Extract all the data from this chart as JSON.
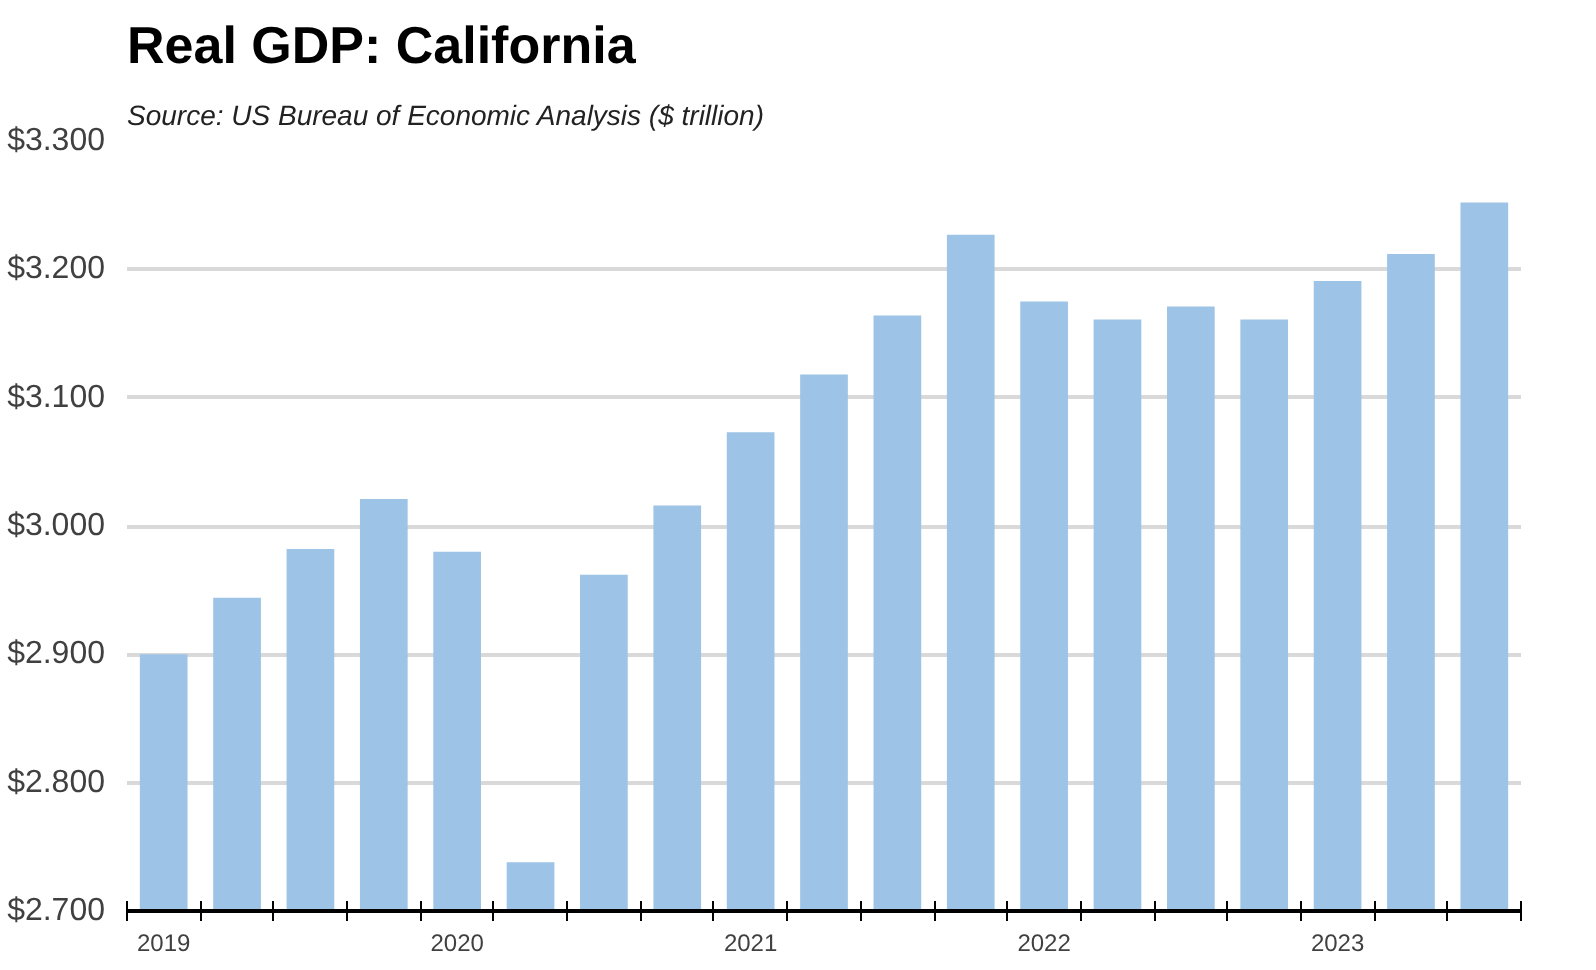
{
  "chart_data": {
    "type": "bar",
    "title": "Real GDP:  California",
    "subtitle": "Source:  US Bureau of Economic Analysis ($ trillion)",
    "categories": [
      "2019",
      null,
      null,
      null,
      "2020",
      null,
      null,
      null,
      "2021",
      null,
      null,
      null,
      "2022",
      null,
      null,
      null,
      "2023",
      null,
      null
    ],
    "values": [
      2.9,
      2.944,
      2.982,
      3.021,
      2.98,
      2.738,
      2.962,
      3.016,
      3.073,
      3.118,
      3.164,
      3.227,
      3.175,
      3.161,
      3.171,
      3.161,
      3.191,
      3.212,
      3.252
    ],
    "color": "#9dc3e6",
    "ylim": [
      2.7,
      3.3
    ],
    "yticks": [
      {
        "value": 2.7,
        "label": "$2.700"
      },
      {
        "value": 2.8,
        "label": "$2.800"
      },
      {
        "value": 2.9,
        "label": "$2.900"
      },
      {
        "value": 3.0,
        "label": "$3.000"
      },
      {
        "value": 3.1,
        "label": "$3.100"
      },
      {
        "value": 3.2,
        "label": "$3.200"
      },
      {
        "value": 3.3,
        "label": "$3.300"
      }
    ],
    "grid": "y"
  }
}
